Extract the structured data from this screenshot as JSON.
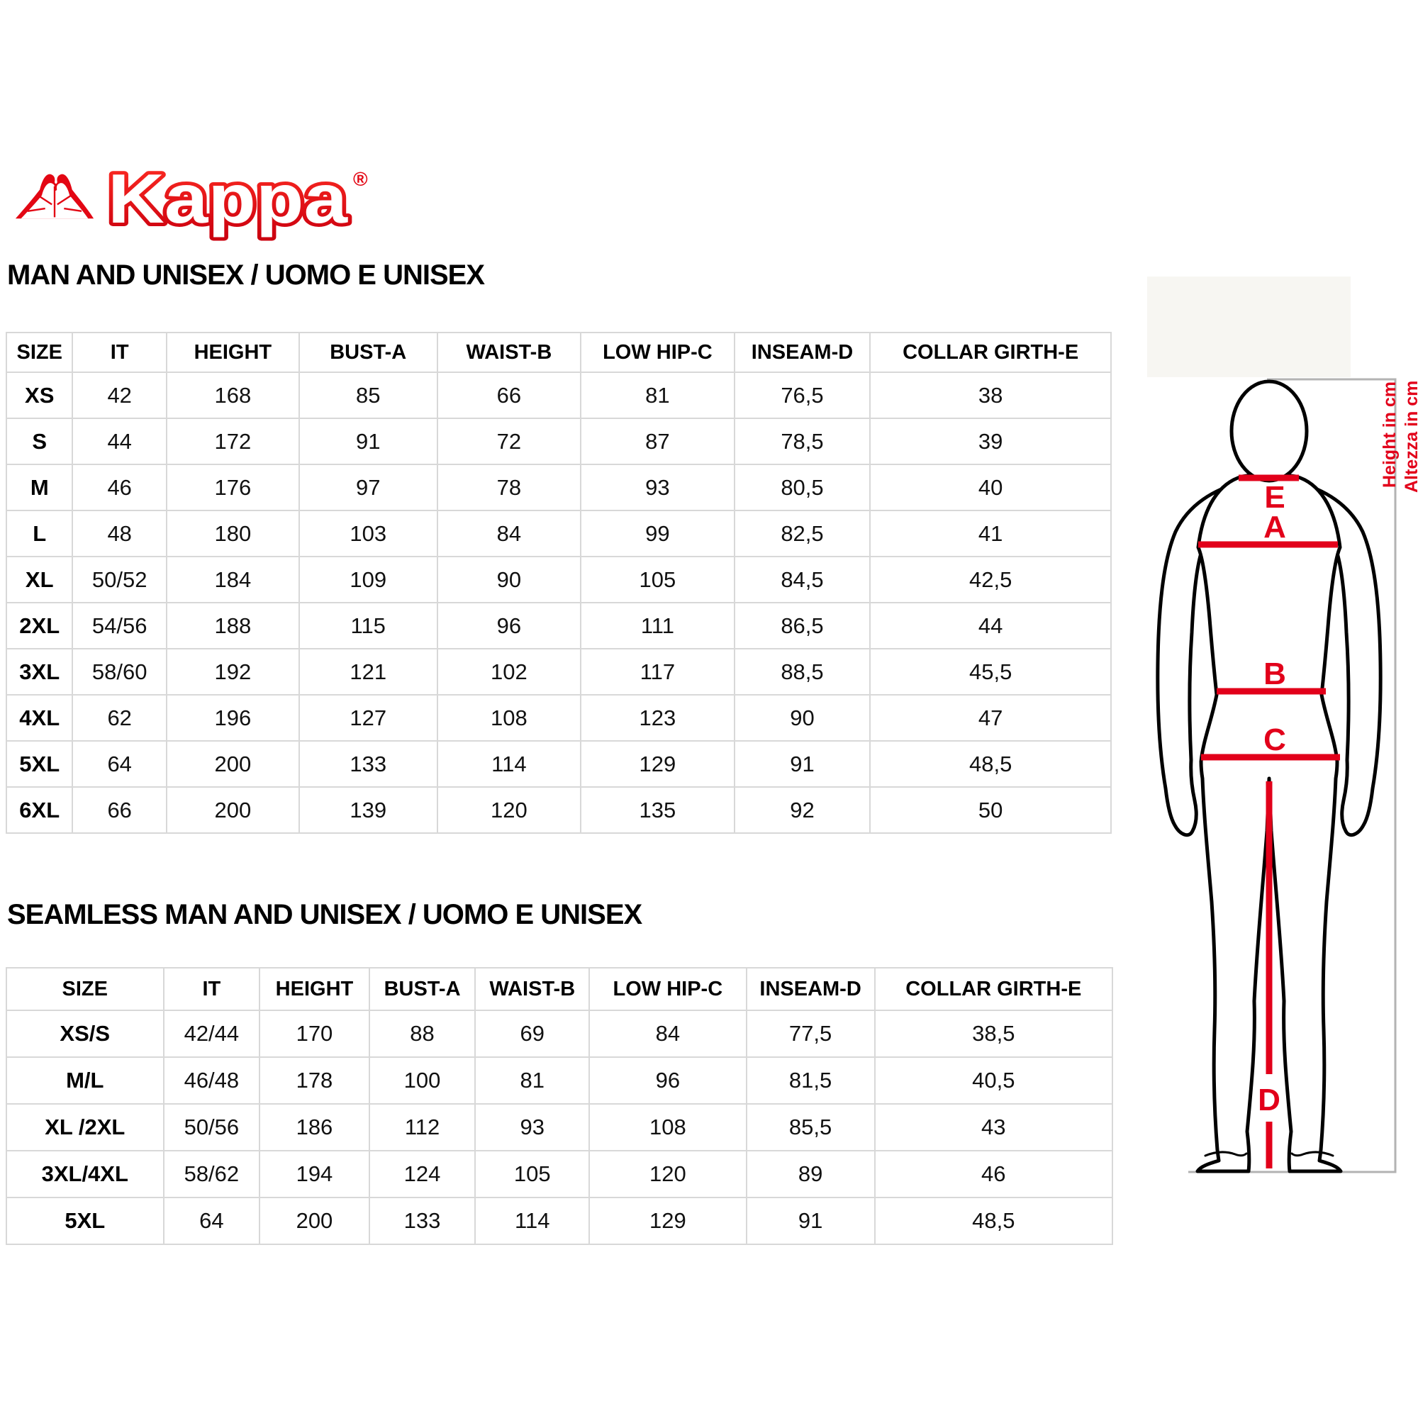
{
  "logo": {
    "brand": "Kappa",
    "registered": "®"
  },
  "tables": {
    "man": {
      "title": "MAN AND UNISEX / UOMO E UNISEX",
      "columns": [
        "SIZE",
        "IT",
        "HEIGHT",
        "BUST-A",
        "WAIST-B",
        "LOW HIP-C",
        "INSEAM-D",
        "COLLAR GIRTH-E"
      ],
      "rows": [
        [
          "XS",
          "42",
          "168",
          "85",
          "66",
          "81",
          "76,5",
          "38"
        ],
        [
          "S",
          "44",
          "172",
          "91",
          "72",
          "87",
          "78,5",
          "39"
        ],
        [
          "M",
          "46",
          "176",
          "97",
          "78",
          "93",
          "80,5",
          "40"
        ],
        [
          "L",
          "48",
          "180",
          "103",
          "84",
          "99",
          "82,5",
          "41"
        ],
        [
          "XL",
          "50/52",
          "184",
          "109",
          "90",
          "105",
          "84,5",
          "42,5"
        ],
        [
          "2XL",
          "54/56",
          "188",
          "115",
          "96",
          "111",
          "86,5",
          "44"
        ],
        [
          "3XL",
          "58/60",
          "192",
          "121",
          "102",
          "117",
          "88,5",
          "45,5"
        ],
        [
          "4XL",
          "62",
          "196",
          "127",
          "108",
          "123",
          "90",
          "47"
        ],
        [
          "5XL",
          "64",
          "200",
          "133",
          "114",
          "129",
          "91",
          "48,5"
        ],
        [
          "6XL",
          "66",
          "200",
          "139",
          "120",
          "135",
          "92",
          "50"
        ]
      ]
    },
    "seamless": {
      "title": "SEAMLESS MAN AND UNISEX / UOMO E UNISEX",
      "columns": [
        "SIZE",
        "IT",
        "HEIGHT",
        "BUST-A",
        "WAIST-B",
        "LOW HIP-C",
        "INSEAM-D",
        "COLLAR GIRTH-E"
      ],
      "rows": [
        [
          "XS/S",
          "42/44",
          "170",
          "88",
          "69",
          "84",
          "77,5",
          "38,5"
        ],
        [
          "M/L",
          "46/48",
          "178",
          "100",
          "81",
          "96",
          "81,5",
          "40,5"
        ],
        [
          "XL /2XL",
          "50/56",
          "186",
          "112",
          "93",
          "108",
          "85,5",
          "43"
        ],
        [
          "3XL/4XL",
          "58/62",
          "194",
          "124",
          "105",
          "120",
          "89",
          "46"
        ],
        [
          "5XL",
          "64",
          "200",
          "133",
          "114",
          "129",
          "91",
          "48,5"
        ]
      ]
    }
  },
  "diagram": {
    "labels": {
      "collar": "E",
      "bust": "A",
      "waist": "B",
      "low_hip": "C",
      "inseam": "D"
    },
    "height_note_en": "Height in cm",
    "height_note_it": "Altezza in cm"
  },
  "colors": {
    "brand_red": "#e30613",
    "measure_line_red": "#e2001a",
    "frame_gray": "#b3b3b3",
    "table_border_gray": "#d8d8d8"
  }
}
